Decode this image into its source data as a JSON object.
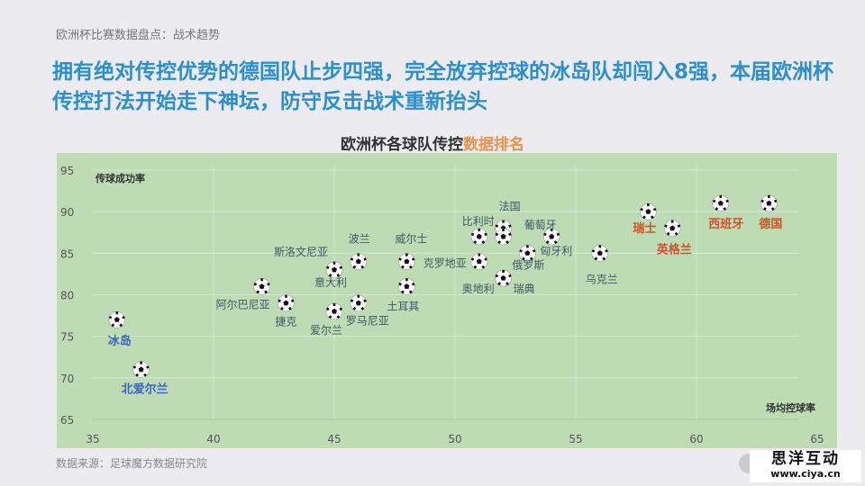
{
  "breadcrumb": "欧洲杯比赛数据盘点：战术趋势",
  "headline": "拥有绝对传控优势的德国队止步四强，完全放弃控球的冰岛队却闯入8强，本届欧洲杯传控打法开始走下神坛，防守反击战术重新抬头",
  "source": "数据来源：足球魔方数据研究院",
  "logo": {
    "name": "思洋互动",
    "url": "www.ciya.cn"
  },
  "colors": {
    "plot_bg": "#bddcb4",
    "label_default": "#3d5a66",
    "label_low": "#3b63c8",
    "label_high": "#d2522a",
    "title_accent": "#e8924a",
    "headline": "#2a8fd0"
  },
  "chart_data": {
    "type": "scatter",
    "title_main": "欧洲杯各球队传控",
    "title_accent": "数据排名",
    "xlabel": "场均控球率",
    "ylabel": "传球成功率",
    "xlim": [
      35,
      65
    ],
    "ylim": [
      65,
      95
    ],
    "xticks": [
      35,
      40,
      45,
      50,
      55,
      60,
      65
    ],
    "yticks": [
      65,
      70,
      75,
      80,
      85,
      90,
      95
    ],
    "grid": true,
    "marker": "soccer-ball-icon",
    "points": [
      {
        "team": "冰岛",
        "x": 36,
        "y": 77,
        "group": "low"
      },
      {
        "team": "北爱尔兰",
        "x": 37,
        "y": 71,
        "group": "low"
      },
      {
        "team": "阿尔巴尼亚",
        "x": 42,
        "y": 81,
        "group": "default"
      },
      {
        "team": "捷克",
        "x": 43,
        "y": 79,
        "group": "default"
      },
      {
        "team": "斯洛文尼亚",
        "x": 45,
        "y": 83,
        "group": "default"
      },
      {
        "team": "意大利",
        "x": 45,
        "y": 83,
        "group": "default"
      },
      {
        "team": "爱尔兰",
        "x": 45,
        "y": 78,
        "group": "default"
      },
      {
        "team": "波兰",
        "x": 46,
        "y": 84,
        "group": "default"
      },
      {
        "team": "罗马尼亚",
        "x": 46,
        "y": 79,
        "group": "default"
      },
      {
        "team": "威尔士",
        "x": 48,
        "y": 84,
        "group": "default"
      },
      {
        "team": "土耳其",
        "x": 48,
        "y": 81,
        "group": "default"
      },
      {
        "team": "比利时",
        "x": 51,
        "y": 87,
        "group": "default"
      },
      {
        "team": "克罗地亚",
        "x": 51,
        "y": 84,
        "group": "default"
      },
      {
        "team": "法国",
        "x": 52,
        "y": 88,
        "group": "default"
      },
      {
        "team": "葡萄牙",
        "x": 52,
        "y": 87,
        "group": "default"
      },
      {
        "team": "匈牙利",
        "x": 54,
        "y": 87,
        "group": "default"
      },
      {
        "team": "俄罗斯",
        "x": 53,
        "y": 85,
        "group": "default"
      },
      {
        "team": "奥地利",
        "x": 52,
        "y": 82,
        "group": "default"
      },
      {
        "team": "瑞典",
        "x": 52,
        "y": 82,
        "group": "default"
      },
      {
        "team": "乌克兰",
        "x": 56,
        "y": 85,
        "group": "default"
      },
      {
        "team": "瑞士",
        "x": 58,
        "y": 90,
        "group": "high"
      },
      {
        "team": "英格兰",
        "x": 59,
        "y": 88,
        "group": "high"
      },
      {
        "team": "西班牙",
        "x": 61,
        "y": 91,
        "group": "high"
      },
      {
        "team": "德国",
        "x": 63,
        "y": 91,
        "group": "high"
      }
    ]
  }
}
